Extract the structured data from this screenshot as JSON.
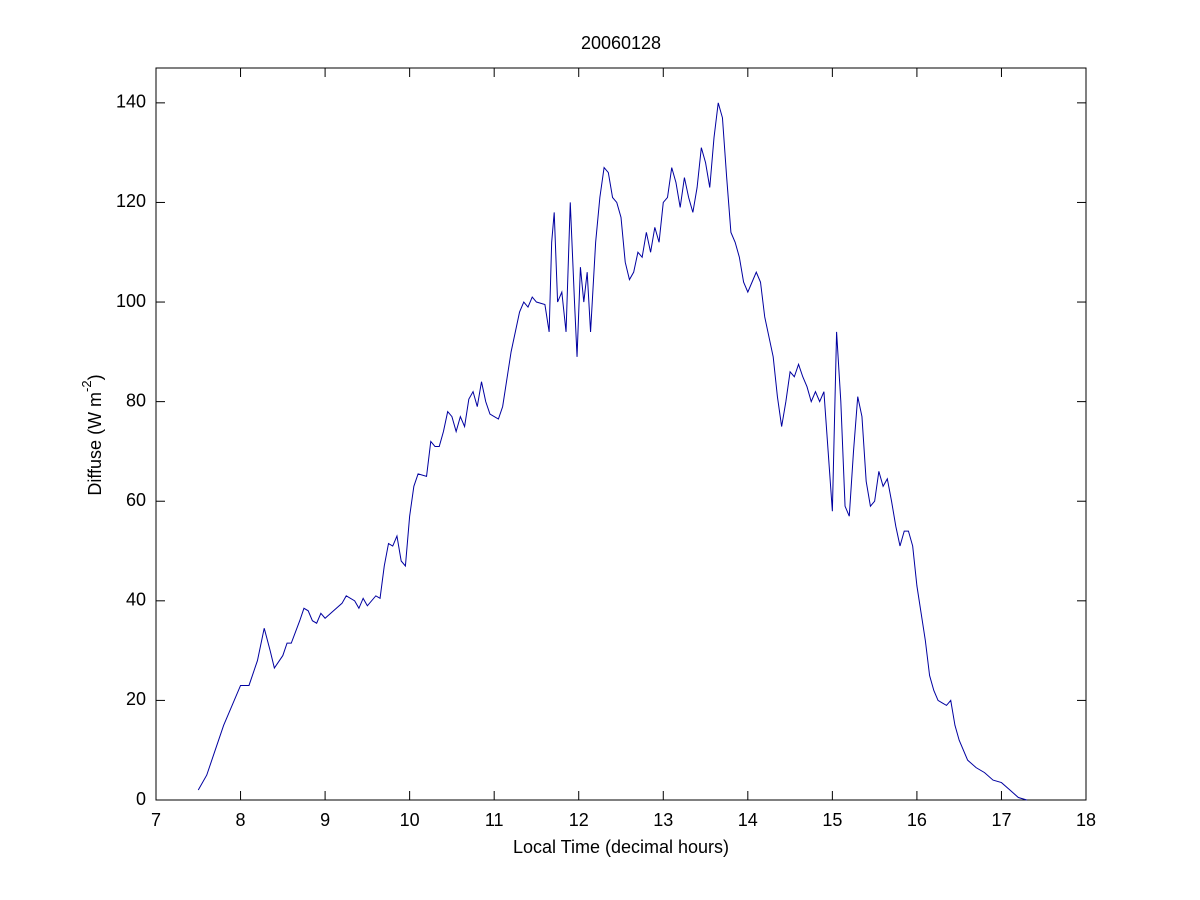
{
  "chart_data": {
    "type": "line",
    "title": "20060128",
    "xlabel": "Local Time (decimal hours)",
    "ylabel": [
      "Diffuse (W m",
      "-2",
      ")"
    ],
    "xlim": [
      7,
      18
    ],
    "xticks": [
      7,
      8,
      9,
      10,
      11,
      12,
      13,
      14,
      15,
      16,
      17,
      18
    ],
    "ylim": [
      0,
      147
    ],
    "yticks": [
      0,
      20,
      40,
      60,
      80,
      100,
      120,
      140
    ],
    "grid": false,
    "series": [
      {
        "color": "#0000a0",
        "x": [
          7.5,
          7.6,
          7.7,
          7.8,
          7.9,
          8.0,
          8.1,
          8.2,
          8.28,
          8.35,
          8.4,
          8.5,
          8.55,
          8.6,
          8.7,
          8.75,
          8.8,
          8.85,
          8.9,
          8.95,
          9.0,
          9.1,
          9.2,
          9.25,
          9.35,
          9.4,
          9.45,
          9.5,
          9.6,
          9.65,
          9.7,
          9.75,
          9.8,
          9.85,
          9.9,
          9.95,
          10.0,
          10.05,
          10.1,
          10.2,
          10.25,
          10.3,
          10.35,
          10.4,
          10.45,
          10.5,
          10.55,
          10.6,
          10.65,
          10.7,
          10.75,
          10.8,
          10.85,
          10.9,
          10.95,
          11.0,
          11.05,
          11.1,
          11.2,
          11.3,
          11.35,
          11.4,
          11.45,
          11.5,
          11.6,
          11.65,
          11.68,
          11.71,
          11.75,
          11.8,
          11.85,
          11.9,
          11.95,
          11.98,
          12.02,
          12.06,
          12.1,
          12.14,
          12.2,
          12.25,
          12.3,
          12.35,
          12.4,
          12.45,
          12.5,
          12.55,
          12.6,
          12.65,
          12.7,
          12.75,
          12.8,
          12.85,
          12.9,
          12.95,
          13.0,
          13.05,
          13.1,
          13.15,
          13.2,
          13.25,
          13.3,
          13.35,
          13.4,
          13.45,
          13.5,
          13.55,
          13.6,
          13.65,
          13.7,
          13.75,
          13.8,
          13.85,
          13.9,
          13.95,
          14.0,
          14.05,
          14.1,
          14.15,
          14.2,
          14.3,
          14.35,
          14.4,
          14.45,
          14.5,
          14.55,
          14.6,
          14.65,
          14.7,
          14.75,
          14.8,
          14.85,
          14.9,
          14.95,
          15.0,
          15.05,
          15.1,
          15.15,
          15.2,
          15.25,
          15.3,
          15.35,
          15.4,
          15.45,
          15.5,
          15.55,
          15.6,
          15.65,
          15.7,
          15.75,
          15.8,
          15.85,
          15.9,
          15.95,
          16.0,
          16.05,
          16.1,
          16.15,
          16.2,
          16.25,
          16.3,
          16.35,
          16.4,
          16.45,
          16.5,
          16.6,
          16.7,
          16.8,
          16.9,
          17.0,
          17.1,
          17.2,
          17.3
        ],
        "values": [
          2,
          5,
          10,
          15,
          19,
          23,
          23,
          28,
          34.5,
          30,
          26.5,
          29,
          31.5,
          31.5,
          36,
          38.5,
          38,
          36,
          35.5,
          37.5,
          36.5,
          38,
          39.5,
          41,
          40,
          38.5,
          40.5,
          39,
          41,
          40.5,
          47,
          51.5,
          51,
          53,
          48,
          47,
          57,
          63,
          65.5,
          65,
          72,
          71,
          71,
          74,
          78,
          77,
          74,
          77,
          75,
          80.5,
          82,
          79,
          84,
          80,
          77.5,
          77,
          76.5,
          79,
          90,
          98,
          100,
          99,
          101,
          100,
          99.5,
          94,
          112,
          118,
          100,
          102,
          94,
          120,
          100,
          89,
          107,
          100,
          106,
          94,
          112,
          121,
          127,
          126,
          121,
          120,
          117,
          108,
          104.5,
          106,
          110,
          109,
          114,
          110,
          115,
          112,
          120,
          121,
          127,
          124,
          119,
          125,
          121,
          118,
          123,
          131,
          128,
          123,
          133,
          140,
          137,
          125,
          114,
          112,
          109,
          104,
          102,
          104,
          106,
          104,
          97,
          89,
          81,
          75,
          80,
          86,
          85,
          87.5,
          85,
          83,
          80,
          82,
          80,
          82,
          70,
          58,
          94,
          80,
          59,
          57,
          70,
          81,
          77,
          64,
          59,
          60,
          66,
          63,
          64.5,
          60,
          55,
          51,
          54,
          54,
          51,
          43,
          37.5,
          32,
          25,
          22,
          20,
          19.5,
          19,
          20,
          15,
          12,
          8,
          6.5,
          5.5,
          4,
          3.5,
          2,
          0.5,
          0
        ]
      }
    ]
  }
}
